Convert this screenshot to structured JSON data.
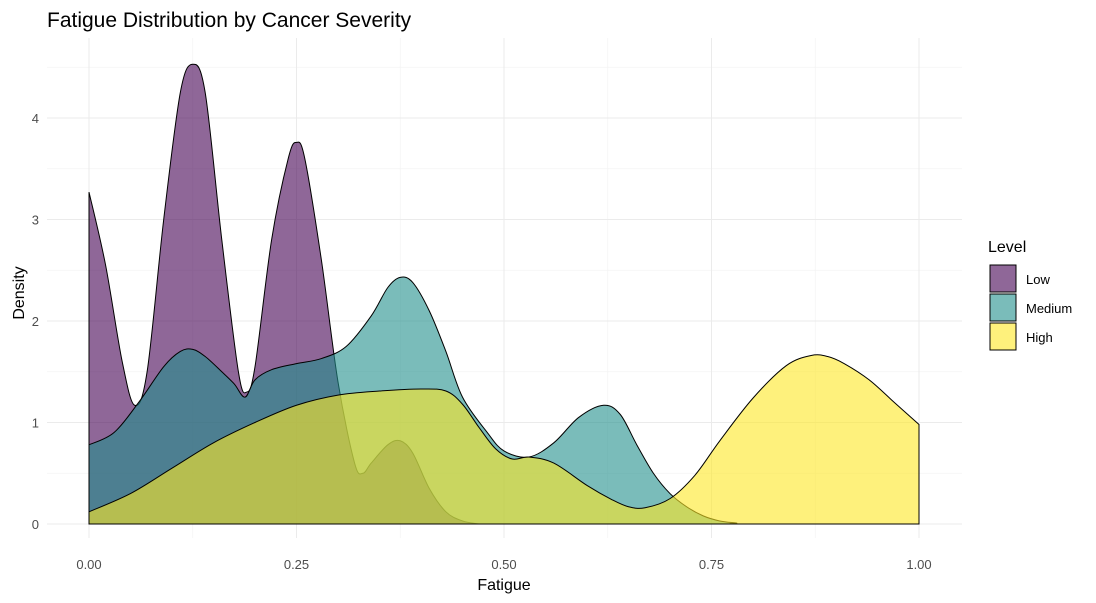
{
  "chart_data": {
    "type": "area",
    "title": "Fatigue Distribution by Cancer Severity",
    "xlabel": "Fatigue",
    "ylabel": "Density",
    "xlim": [
      0,
      1
    ],
    "ylim": [
      0,
      4.55
    ],
    "x_ticks": [
      0,
      0.25,
      0.5,
      0.75,
      1
    ],
    "x_tick_labels": [
      "0.00",
      "0.25",
      "0.50",
      "0.75",
      "1.00"
    ],
    "y_ticks": [
      0,
      1,
      2,
      3,
      4
    ],
    "y_tick_labels": [
      "0",
      "1",
      "2",
      "3",
      "4"
    ],
    "grid": true,
    "legend": {
      "title": "Level",
      "placement": "right"
    },
    "series": [
      {
        "name": "Low",
        "color": "#440154",
        "x": [
          0,
          0.02,
          0.04,
          0.055,
          0.07,
          0.09,
          0.11,
          0.125,
          0.14,
          0.16,
          0.18,
          0.19,
          0.2,
          0.22,
          0.24,
          0.25,
          0.26,
          0.28,
          0.3,
          0.32,
          0.33,
          0.34,
          0.36,
          0.375,
          0.39,
          0.41,
          0.43,
          0.45,
          0.47
        ],
        "y": [
          3.27,
          2.55,
          1.6,
          1.17,
          1.5,
          3.0,
          4.25,
          4.53,
          4.25,
          2.8,
          1.5,
          1.3,
          1.55,
          2.8,
          3.6,
          3.76,
          3.6,
          2.6,
          1.4,
          0.6,
          0.5,
          0.6,
          0.78,
          0.82,
          0.7,
          0.35,
          0.12,
          0.03,
          0.0
        ]
      },
      {
        "name": "Medium",
        "color": "#21908C",
        "x": [
          0,
          0.03,
          0.06,
          0.09,
          0.11,
          0.125,
          0.14,
          0.16,
          0.175,
          0.188,
          0.2,
          0.22,
          0.25,
          0.28,
          0.31,
          0.34,
          0.36,
          0.375,
          0.39,
          0.41,
          0.43,
          0.45,
          0.48,
          0.5,
          0.53,
          0.56,
          0.59,
          0.62,
          0.64,
          0.66,
          0.68,
          0.7,
          0.72,
          0.74,
          0.76,
          0.78,
          0.79,
          1.0
        ],
        "y": [
          0.78,
          0.9,
          1.2,
          1.55,
          1.7,
          1.72,
          1.65,
          1.5,
          1.38,
          1.25,
          1.42,
          1.52,
          1.58,
          1.63,
          1.75,
          2.05,
          2.33,
          2.43,
          2.38,
          2.1,
          1.7,
          1.25,
          0.9,
          0.72,
          0.66,
          0.8,
          1.05,
          1.17,
          1.08,
          0.78,
          0.5,
          0.3,
          0.17,
          0.08,
          0.03,
          0.01,
          0.0,
          0.0
        ]
      },
      {
        "name": "High",
        "color": "#FDE725",
        "x": [
          0,
          0.05,
          0.1,
          0.15,
          0.2,
          0.25,
          0.3,
          0.35,
          0.4,
          0.43,
          0.45,
          0.47,
          0.49,
          0.51,
          0.53,
          0.56,
          0.6,
          0.63,
          0.65,
          0.67,
          0.7,
          0.73,
          0.76,
          0.8,
          0.84,
          0.87,
          0.89,
          0.91,
          0.94,
          0.97,
          1.0
        ],
        "y": [
          0.12,
          0.3,
          0.55,
          0.8,
          1.0,
          1.17,
          1.27,
          1.31,
          1.33,
          1.31,
          1.18,
          0.95,
          0.74,
          0.64,
          0.66,
          0.6,
          0.38,
          0.24,
          0.17,
          0.16,
          0.25,
          0.48,
          0.82,
          1.24,
          1.56,
          1.66,
          1.65,
          1.58,
          1.42,
          1.2,
          0.98
        ]
      }
    ]
  }
}
